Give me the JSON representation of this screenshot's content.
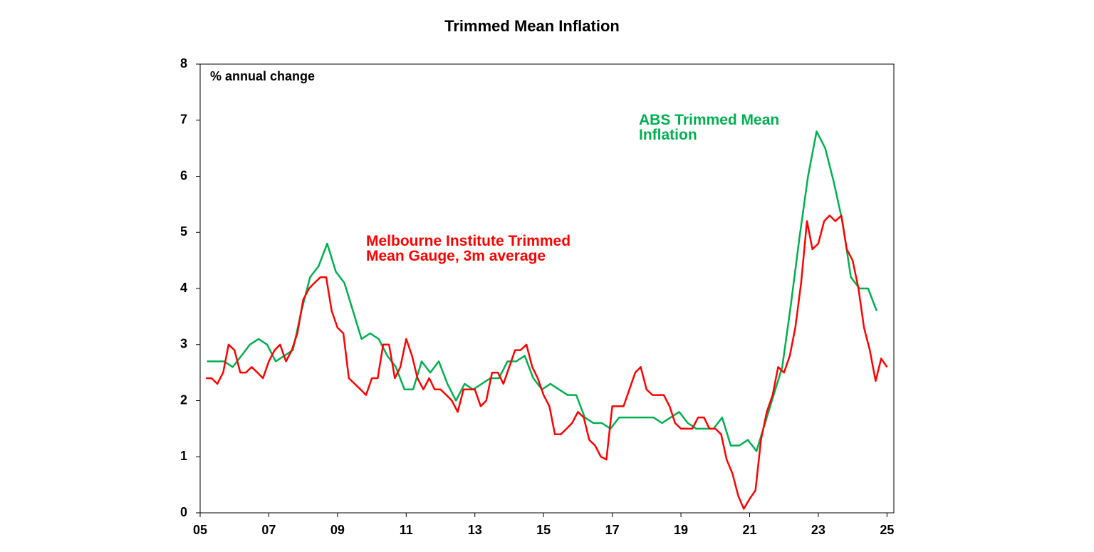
{
  "chart_data": {
    "type": "line",
    "title": "Trimmed Mean Inflation",
    "y_axis_label": "% annual change",
    "xlim": [
      2005,
      2025.2
    ],
    "xticks": [
      {
        "value": 2005,
        "label": "05"
      },
      {
        "value": 2007,
        "label": "07"
      },
      {
        "value": 2009,
        "label": "09"
      },
      {
        "value": 2011,
        "label": "11"
      },
      {
        "value": 2013,
        "label": "13"
      },
      {
        "value": 2015,
        "label": "15"
      },
      {
        "value": 2017,
        "label": "17"
      },
      {
        "value": 2019,
        "label": "19"
      },
      {
        "value": 2021,
        "label": "21"
      },
      {
        "value": 2023,
        "label": "23"
      },
      {
        "value": 2025,
        "label": "25"
      }
    ],
    "ylim": [
      0,
      8
    ],
    "yticks": [
      0,
      1,
      2,
      3,
      4,
      5,
      6,
      7,
      8
    ],
    "grid": false,
    "series": [
      {
        "name": "ABS Trimmed Mean Inflation",
        "color": "#00b050",
        "x": [
          2005.2,
          2005.45,
          2005.7,
          2005.95,
          2006.2,
          2006.45,
          2006.7,
          2006.95,
          2007.2,
          2007.45,
          2007.7,
          2007.95,
          2008.2,
          2008.45,
          2008.7,
          2008.95,
          2009.2,
          2009.45,
          2009.7,
          2009.95,
          2010.2,
          2010.45,
          2010.7,
          2010.95,
          2011.2,
          2011.45,
          2011.7,
          2011.95,
          2012.2,
          2012.45,
          2012.7,
          2012.95,
          2013.2,
          2013.45,
          2013.7,
          2013.95,
          2014.2,
          2014.45,
          2014.7,
          2014.95,
          2015.2,
          2015.45,
          2015.7,
          2015.95,
          2016.2,
          2016.45,
          2016.7,
          2016.95,
          2017.2,
          2017.45,
          2017.7,
          2017.95,
          2018.2,
          2018.45,
          2018.7,
          2018.95,
          2019.2,
          2019.45,
          2019.7,
          2019.95,
          2020.2,
          2020.45,
          2020.7,
          2020.95,
          2021.2,
          2021.45,
          2021.7,
          2021.95,
          2022.2,
          2022.45,
          2022.7,
          2022.95,
          2023.2,
          2023.45,
          2023.7,
          2023.95,
          2024.2,
          2024.45,
          2024.7
        ],
        "values": [
          2.7,
          2.7,
          2.7,
          2.6,
          2.8,
          3.0,
          3.1,
          3.0,
          2.7,
          2.8,
          2.9,
          3.6,
          4.2,
          4.4,
          4.8,
          4.3,
          4.1,
          3.6,
          3.1,
          3.2,
          3.1,
          2.8,
          2.6,
          2.2,
          2.2,
          2.7,
          2.5,
          2.7,
          2.3,
          2.0,
          2.3,
          2.2,
          2.3,
          2.4,
          2.4,
          2.7,
          2.7,
          2.8,
          2.4,
          2.2,
          2.3,
          2.2,
          2.1,
          2.1,
          1.7,
          1.6,
          1.6,
          1.5,
          1.7,
          1.7,
          1.7,
          1.7,
          1.7,
          1.6,
          1.7,
          1.8,
          1.6,
          1.5,
          1.5,
          1.5,
          1.7,
          1.2,
          1.2,
          1.3,
          1.1,
          1.6,
          2.1,
          2.6,
          3.7,
          4.9,
          6.0,
          6.8,
          6.5,
          5.9,
          5.2,
          4.2,
          4.0,
          4.0,
          3.6
        ]
      },
      {
        "name": "Melbourne Institute Trimmed Mean Gauge, 3m average",
        "color": "#ff0000",
        "x": [
          2005.17,
          2005.33,
          2005.5,
          2005.67,
          2005.83,
          2006.0,
          2006.17,
          2006.33,
          2006.5,
          2006.67,
          2006.83,
          2007.0,
          2007.17,
          2007.33,
          2007.5,
          2007.67,
          2007.83,
          2008.0,
          2008.17,
          2008.33,
          2008.5,
          2008.67,
          2008.83,
          2009.0,
          2009.17,
          2009.33,
          2009.5,
          2009.67,
          2009.83,
          2010.0,
          2010.17,
          2010.33,
          2010.5,
          2010.67,
          2010.83,
          2011.0,
          2011.17,
          2011.33,
          2011.5,
          2011.67,
          2011.83,
          2012.0,
          2012.17,
          2012.33,
          2012.5,
          2012.67,
          2012.83,
          2013.0,
          2013.17,
          2013.33,
          2013.5,
          2013.67,
          2013.83,
          2014.0,
          2014.17,
          2014.33,
          2014.5,
          2014.67,
          2014.83,
          2015.0,
          2015.17,
          2015.33,
          2015.5,
          2015.67,
          2015.83,
          2016.0,
          2016.17,
          2016.33,
          2016.5,
          2016.67,
          2016.83,
          2017.0,
          2017.17,
          2017.33,
          2017.5,
          2017.67,
          2017.83,
          2018.0,
          2018.17,
          2018.33,
          2018.5,
          2018.67,
          2018.83,
          2019.0,
          2019.17,
          2019.33,
          2019.5,
          2019.67,
          2019.83,
          2020.0,
          2020.17,
          2020.33,
          2020.5,
          2020.67,
          2020.83,
          2021.0,
          2021.17,
          2021.33,
          2021.5,
          2021.67,
          2021.83,
          2022.0,
          2022.17,
          2022.33,
          2022.5,
          2022.67,
          2022.83,
          2023.0,
          2023.17,
          2023.33,
          2023.5,
          2023.67,
          2023.83,
          2024.0,
          2024.17,
          2024.33,
          2024.5,
          2024.67,
          2024.83,
          2025.0
        ],
        "values": [
          2.4,
          2.4,
          2.3,
          2.5,
          3.0,
          2.9,
          2.5,
          2.5,
          2.6,
          2.5,
          2.4,
          2.7,
          2.9,
          3.0,
          2.7,
          2.9,
          3.2,
          3.8,
          4.0,
          4.1,
          4.2,
          4.2,
          3.6,
          3.3,
          3.2,
          2.4,
          2.3,
          2.2,
          2.1,
          2.4,
          2.4,
          3.0,
          3.0,
          2.4,
          2.6,
          3.1,
          2.8,
          2.4,
          2.2,
          2.4,
          2.2,
          2.2,
          2.1,
          2.0,
          1.8,
          2.2,
          2.2,
          2.2,
          1.9,
          2.0,
          2.5,
          2.5,
          2.3,
          2.6,
          2.9,
          2.9,
          3.0,
          2.6,
          2.4,
          2.1,
          1.9,
          1.4,
          1.4,
          1.5,
          1.6,
          1.8,
          1.7,
          1.3,
          1.2,
          1.0,
          0.95,
          1.9,
          1.9,
          1.9,
          2.2,
          2.5,
          2.6,
          2.2,
          2.1,
          2.1,
          2.1,
          1.9,
          1.6,
          1.5,
          1.5,
          1.5,
          1.7,
          1.7,
          1.5,
          1.5,
          1.4,
          0.95,
          0.7,
          0.3,
          0.07,
          0.25,
          0.4,
          1.3,
          1.8,
          2.1,
          2.6,
          2.5,
          2.8,
          3.3,
          4.1,
          5.2,
          4.7,
          4.8,
          5.2,
          5.3,
          5.2,
          5.3,
          4.7,
          4.5,
          4.0,
          3.3,
          2.9,
          2.35,
          2.75,
          2.6
        ]
      }
    ]
  }
}
